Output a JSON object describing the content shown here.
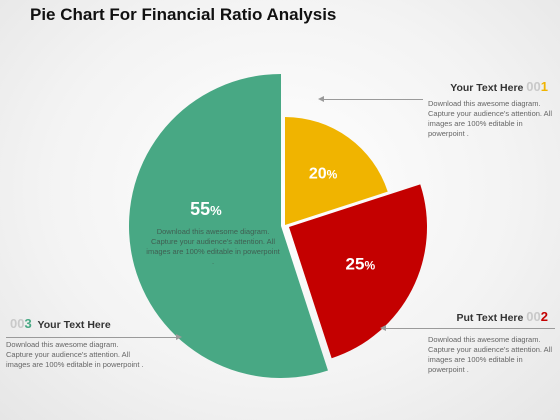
{
  "title": "Pie Chart For Financial Ratio Analysis",
  "chart_data": {
    "type": "pie",
    "slices": [
      {
        "label": "20%",
        "value": 20,
        "color": "#f0b400"
      },
      {
        "label": "25%",
        "value": 25,
        "color": "#c40000"
      },
      {
        "label": "55%",
        "value": 55,
        "color": "#48a884"
      }
    ]
  },
  "center_note": "Download this awesome diagram. Capture your audience's attention. All images are 100% editable in powerpoint .",
  "callouts": [
    {
      "heading": "Your Text Here",
      "number_zeros": "00",
      "number_digit": "1",
      "number_color": "#f0b400",
      "body": "Download this awesome diagram. Capture your audience's attention. All images are 100% editable in powerpoint ."
    },
    {
      "heading": "Put Text Here",
      "number_zeros": "00",
      "number_digit": "2",
      "number_color": "#c40000",
      "body": "Download this awesome diagram. Capture your audience's attention. All images are 100% editable in powerpoint ."
    },
    {
      "heading": "Your Text Here",
      "number_zeros": "00",
      "number_digit": "3",
      "number_color": "#48a884",
      "body": "Download this awesome diagram. Capture your audience's attention. All images are 100% editable in powerpoint ."
    }
  ]
}
